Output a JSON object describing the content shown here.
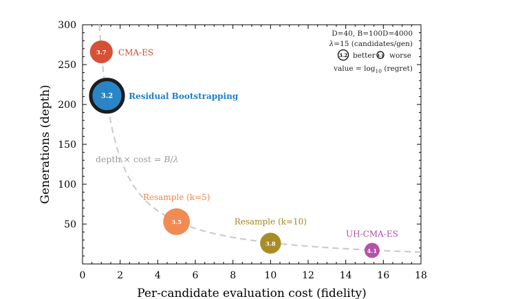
{
  "chart_data": {
    "type": "scatter",
    "xlabel": "Per-candidate evaluation cost (fidelity)",
    "ylabel": "Generations (depth)",
    "xlim": [
      0,
      18
    ],
    "ylim": [
      0,
      300
    ],
    "xticks": [
      0,
      2,
      4,
      6,
      8,
      10,
      12,
      14,
      16,
      18
    ],
    "yticks": [
      50,
      100,
      150,
      200,
      250,
      300
    ],
    "grid": false,
    "curve": {
      "label": "depth × cost = B/λ",
      "label_prefix": "depth",
      "label_times": "×",
      "label_cost": "cost",
      "label_eq": "=",
      "label_B": "B",
      "label_slash": "/",
      "label_lambda": "λ",
      "product": 266.7,
      "color": "#cccccc"
    },
    "points": [
      {
        "name": "CMA-ES",
        "x": 1.0,
        "y": 266,
        "value": "3.7",
        "color": "#d4472a",
        "highlight": false
      },
      {
        "name": "Residual Bootstrapping",
        "x": 1.3,
        "y": 211,
        "value": "3.2",
        "color": "#1f7fc4",
        "highlight": true
      },
      {
        "name": "Resample (k=5)",
        "x": 5.0,
        "y": 53,
        "value": "3.5",
        "color": "#f0844a",
        "highlight": false
      },
      {
        "name": "Resample (k=10)",
        "x": 10.0,
        "y": 26,
        "value": "3.8",
        "color": "#a5861a",
        "highlight": false
      },
      {
        "name": "UH-CMA-ES",
        "x": 15.4,
        "y": 17,
        "value": "4.1",
        "color": "#b04aa6",
        "highlight": false
      }
    ],
    "legend": {
      "position": "top-right",
      "line1": "D=40, B=100D=4000",
      "line2_lambda": "λ",
      "line2_rest": "=15 (candidates/gen)",
      "better_value": "3.2",
      "better_label": "better",
      "worse_value": "4.1",
      "worse_label": "worse",
      "value_prefix": "value = log",
      "value_sub": "10",
      "value_suffix": " (regret)"
    }
  }
}
